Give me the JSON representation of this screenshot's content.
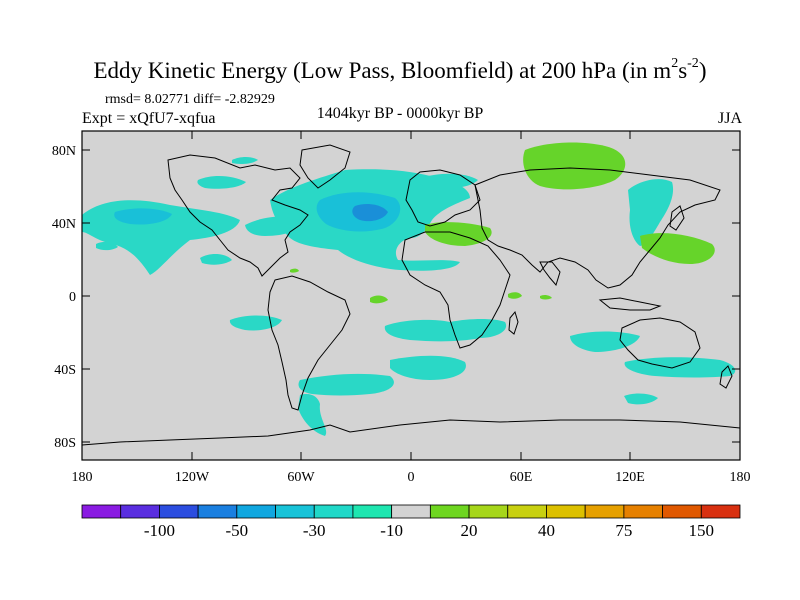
{
  "title": {
    "main": "Eddy Kinetic Energy (Low Pass, Bloomfield) at 200 hPa (in m",
    "sup1": "2",
    "s": "s",
    "sup2": "-2",
    "close": ")"
  },
  "stats": "rmsd= 8.02771  diff= -2.82929",
  "expt": "Expt = xQfU7-xqfua",
  "period": "1404kyr BP - 0000kyr BP",
  "season": "JJA",
  "map": {
    "lat_ticks": [
      "80N",
      "40N",
      "0",
      "40S",
      "80S"
    ],
    "lon_ticks": [
      "180",
      "120W",
      "60W",
      "0",
      "60E",
      "120E",
      "180"
    ],
    "background_color": "#d3d3d3",
    "coast_color": "#000000"
  },
  "colorbar": {
    "colors": [
      "#8a1be2",
      "#5a2ee0",
      "#2b4de0",
      "#1a7fe0",
      "#10a7e0",
      "#18c3d8",
      "#20d8c8",
      "#1ee6b0",
      "#d3d3d3",
      "#6ed620",
      "#a6d61a",
      "#c8d010",
      "#dcc000",
      "#e6a000",
      "#e68000",
      "#e05800",
      "#d83010"
    ],
    "labels": [
      "-100",
      "-50",
      "-30",
      "-10",
      "20",
      "40",
      "75",
      "150"
    ]
  },
  "palette": {
    "light_cyan": "#2ad8c6",
    "mid_cyan": "#19c0d8",
    "deep_blue": "#1a8fd8",
    "green": "#66d42a"
  }
}
